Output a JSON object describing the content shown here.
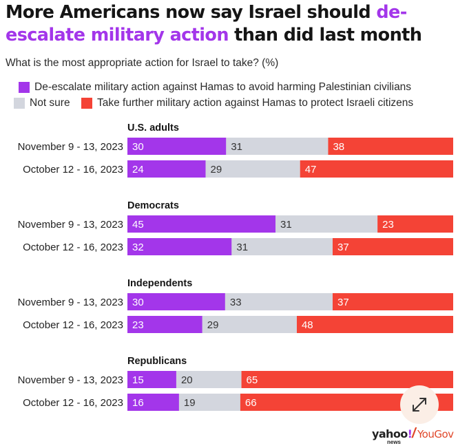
{
  "header": {
    "title_part1": "More Americans now say Israel should ",
    "title_highlight": "de-escalate military action",
    "title_part2": " than did last month",
    "subtitle": "What is the most appropriate action for Israel to take? (%)"
  },
  "legend": {
    "deescalate": "De-escalate military action against Hamas to avoid harming Palestinian civilians",
    "not_sure": "Not sure",
    "further": "Take further military action against Hamas to protect Israeli citizens"
  },
  "colors": {
    "deescalate": "#a336ea",
    "not_sure": "#d3d6de",
    "further": "#f44336",
    "title_highlight": "#a336ea"
  },
  "chart_data": {
    "type": "bar",
    "orientation": "horizontal",
    "stacked": true,
    "normalized": true,
    "title": "More Americans now say Israel should de-escalate military action than did last month",
    "subtitle": "What is the most appropriate action for Israel to take? (%)",
    "series_names": [
      "De-escalate military action against Hamas to avoid harming Palestinian civilians",
      "Not sure",
      "Take further military action against Hamas to protect Israeli citizens"
    ],
    "groups": [
      {
        "name": "U.S. adults",
        "rows": [
          {
            "label": "November 9 - 13, 2023",
            "values": [
              30,
              31,
              38
            ]
          },
          {
            "label": "October 12 - 16, 2023",
            "values": [
              24,
              29,
              47
            ]
          }
        ]
      },
      {
        "name": "Democrats",
        "rows": [
          {
            "label": "November 9 - 13, 2023",
            "values": [
              45,
              31,
              23
            ]
          },
          {
            "label": "October 12 - 16, 2023",
            "values": [
              32,
              31,
              37
            ]
          }
        ]
      },
      {
        "name": "Independents",
        "rows": [
          {
            "label": "November 9 - 13, 2023",
            "values": [
              30,
              33,
              37
            ]
          },
          {
            "label": "October 12 - 16, 2023",
            "values": [
              23,
              29,
              48
            ]
          }
        ]
      },
      {
        "name": "Republicans",
        "rows": [
          {
            "label": "November 9 - 13, 2023",
            "values": [
              15,
              20,
              65
            ]
          },
          {
            "label": "October 12 - 16, 2023",
            "values": [
              16,
              19,
              66
            ]
          }
        ]
      }
    ]
  },
  "branding": {
    "yahoo": "yahoo",
    "bang": "!",
    "news": "news",
    "slash": "/",
    "yougov": "YouGov"
  },
  "controls": {
    "expand_icon": "expand-arrows-icon"
  }
}
